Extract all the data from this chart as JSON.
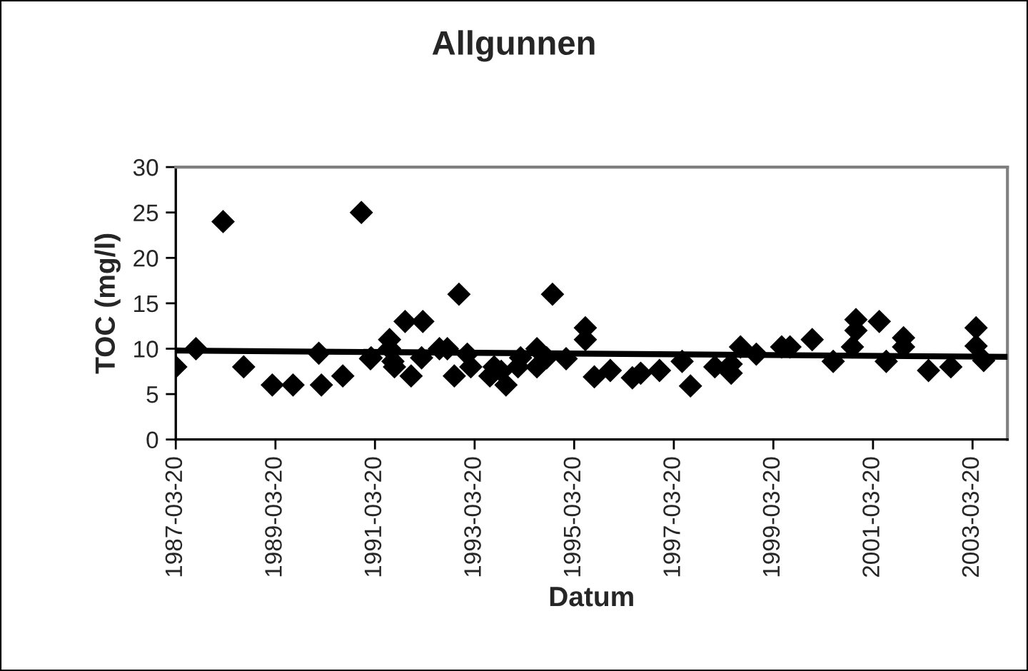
{
  "chart_data": {
    "type": "scatter",
    "title": "Allgunnen",
    "xlabel": "Datum",
    "ylabel": "TOC (mg/l)",
    "xlim": [
      "1987-03-20",
      "2003-12-01"
    ],
    "xticks": [
      "1987-03-20",
      "1989-03-20",
      "1991-03-20",
      "1993-03-20",
      "1995-03-20",
      "1997-03-20",
      "1999-03-20",
      "2001-03-20",
      "2003-03-20"
    ],
    "ylim": [
      0,
      30
    ],
    "yticks": [
      0,
      5,
      10,
      15,
      20,
      25,
      30
    ],
    "grid": false,
    "legend": false,
    "marker": "diamond",
    "series": [
      {
        "color": "#000000",
        "x": [
          "1987-03-20",
          "1987-08-15",
          "1988-03-01",
          "1988-07-30",
          "1989-02-25",
          "1989-07-27",
          "1990-02-01",
          "1990-02-20",
          "1990-07-27",
          "1990-12-10",
          "1991-02-15",
          "1991-02-20",
          "1991-07-05",
          "1991-07-05",
          "1991-07-30",
          "1991-08-10",
          "1991-10-27",
          "1991-12-10",
          "1992-03-05",
          "1992-02-25",
          "1992-07-05",
          "1992-09-01",
          "1992-10-22",
          "1992-11-25",
          "1993-01-25",
          "1993-02-20",
          "1993-07-10",
          "1993-08-10",
          "1993-11-05",
          "1993-10-01",
          "1994-02-01",
          "1994-02-20",
          "1994-06-20",
          "1994-06-20",
          "1994-08-30",
          "1994-10-12",
          "1995-01-20",
          "1995-06-10",
          "1995-06-10",
          "1995-08-15",
          "1995-12-10",
          "1996-05-20",
          "1996-07-20",
          "1996-12-05",
          "1997-05-20",
          "1997-07-20",
          "1998-01-15",
          "1998-05-15",
          "1998-05-15",
          "1998-07-22",
          "1998-11-15",
          "1999-05-20",
          "1999-07-20",
          "1999-12-30",
          "2000-06-01",
          "2000-10-20",
          "2000-11-15",
          "2000-11-15",
          "2001-05-05",
          "2001-06-25",
          "2001-10-30",
          "2001-10-30",
          "2002-05-01",
          "2002-10-12",
          "2003-04-15",
          "2003-04-15",
          "2003-06-10"
        ],
        "values": [
          8,
          10,
          24,
          8,
          6,
          6,
          9.5,
          6,
          7,
          25,
          8.9,
          9,
          11,
          10,
          8.6,
          8,
          13,
          7,
          13,
          9,
          10,
          10,
          7,
          16,
          9.4,
          8,
          7,
          8,
          6,
          7.5,
          8,
          9,
          10,
          8,
          9,
          16,
          8.9,
          12.3,
          11,
          6.9,
          7.6,
          6.8,
          7.3,
          7.6,
          8.6,
          5.9,
          8,
          7.3,
          8.3,
          10.2,
          9.4,
          10.2,
          10.2,
          11,
          8.6,
          10.2,
          12,
          13.2,
          13,
          8.6,
          11.2,
          10.2,
          7.6,
          8,
          12.3,
          10.3,
          8.7
        ]
      },
      {
        "type": "line",
        "color": "#000000",
        "line_style": "solid",
        "marker": "none",
        "x": [
          "1987-03-20",
          "2003-12-01"
        ],
        "values": [
          9.8,
          9.1
        ]
      }
    ]
  }
}
